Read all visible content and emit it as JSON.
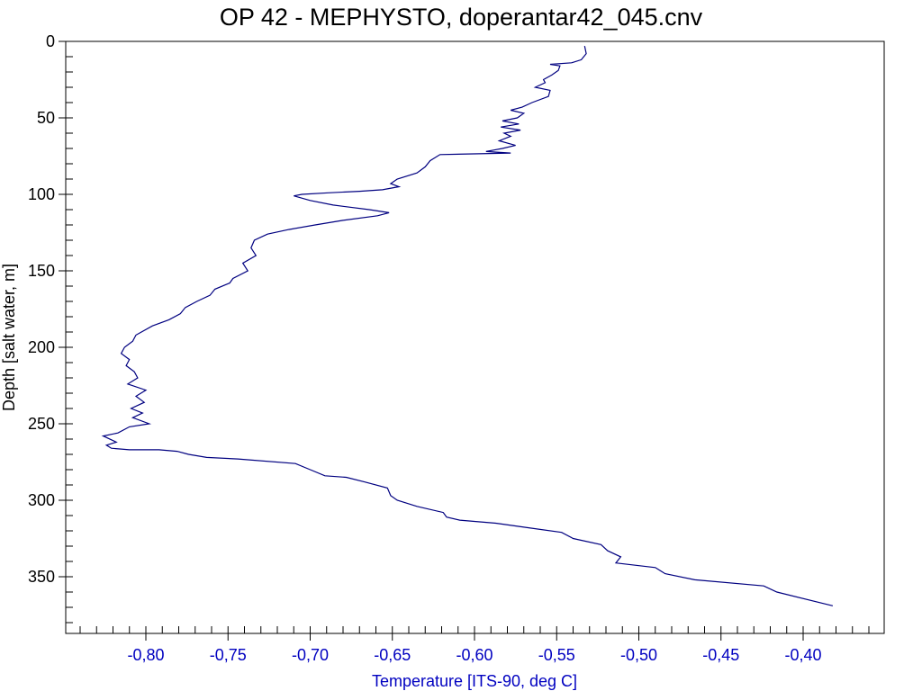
{
  "chart_data": {
    "type": "line",
    "title": "OP 42 - MEPHYSTO, doperantar42_045.cnv",
    "xlabel": "Temperature [ITS-90, deg C]",
    "ylabel": "Depth [salt water, m]",
    "xlim": [
      -0.85,
      -0.36
    ],
    "ylim": [
      0,
      385
    ],
    "y_inverted": true,
    "x_ticks": [
      {
        "value": -0.8,
        "label": "-0,80"
      },
      {
        "value": -0.75,
        "label": "-0,75"
      },
      {
        "value": -0.7,
        "label": "-0,70"
      },
      {
        "value": -0.65,
        "label": "-0,65"
      },
      {
        "value": -0.6,
        "label": "-0,60"
      },
      {
        "value": -0.55,
        "label": "-0,55"
      },
      {
        "value": -0.5,
        "label": "-0,50"
      },
      {
        "value": -0.45,
        "label": "-0,45"
      },
      {
        "value": -0.4,
        "label": "-0,40"
      }
    ],
    "y_ticks": [
      {
        "value": 0,
        "label": "0"
      },
      {
        "value": 50,
        "label": "50"
      },
      {
        "value": 100,
        "label": "100"
      },
      {
        "value": 150,
        "label": "150"
      },
      {
        "value": 200,
        "label": "200"
      },
      {
        "value": 250,
        "label": "250"
      },
      {
        "value": 300,
        "label": "300"
      },
      {
        "value": 350,
        "label": "350"
      }
    ],
    "grid": false,
    "line_color": "#000080",
    "axis_label_color": "#0000c0",
    "series": [
      {
        "x": [
          -0.533,
          -0.532,
          -0.535,
          -0.541,
          -0.554,
          -0.548,
          -0.549,
          -0.553,
          -0.558,
          -0.557,
          -0.563,
          -0.554,
          -0.555,
          -0.565,
          -0.571,
          -0.578,
          -0.57,
          -0.574,
          -0.583,
          -0.573,
          -0.584,
          -0.572,
          -0.582,
          -0.578,
          -0.585,
          -0.575,
          -0.583,
          -0.588,
          -0.593,
          -0.578,
          -0.621,
          -0.627,
          -0.63,
          -0.635,
          -0.647,
          -0.651,
          -0.646,
          -0.656,
          -0.67,
          -0.689,
          -0.705,
          -0.71,
          -0.7,
          -0.686,
          -0.664,
          -0.652,
          -0.659,
          -0.68,
          -0.697,
          -0.713,
          -0.726,
          -0.734,
          -0.736,
          -0.733,
          -0.741,
          -0.738,
          -0.747,
          -0.749,
          -0.758,
          -0.761,
          -0.769,
          -0.776,
          -0.779,
          -0.786,
          -0.796,
          -0.806,
          -0.808,
          -0.813,
          -0.815,
          -0.81,
          -0.812,
          -0.807,
          -0.805,
          -0.811,
          -0.8,
          -0.806,
          -0.801,
          -0.809,
          -0.802,
          -0.808,
          -0.798,
          -0.81,
          -0.817,
          -0.826,
          -0.818,
          -0.824,
          -0.821,
          -0.81,
          -0.792,
          -0.781,
          -0.774,
          -0.763,
          -0.744,
          -0.709,
          -0.7,
          -0.691,
          -0.678,
          -0.667,
          -0.653,
          -0.651,
          -0.647,
          -0.635,
          -0.619,
          -0.617,
          -0.609,
          -0.587,
          -0.567,
          -0.547,
          -0.54,
          -0.523,
          -0.519,
          -0.511,
          -0.514,
          -0.49,
          -0.484,
          -0.466,
          -0.424,
          -0.416,
          -0.382
        ],
        "y": [
          3,
          8,
          12,
          14,
          15,
          16,
          19,
          22,
          25,
          27,
          30,
          32,
          36,
          40,
          43,
          45,
          47,
          50,
          52,
          54,
          56,
          58,
          60,
          62,
          65,
          68,
          70,
          71,
          72,
          73,
          74,
          78,
          82,
          86,
          90,
          93,
          95,
          97,
          98,
          99,
          100,
          101,
          104,
          107,
          110,
          112,
          114,
          117,
          120,
          123,
          126,
          130,
          135,
          140,
          145,
          150,
          155,
          158,
          162,
          166,
          170,
          174,
          178,
          182,
          186,
          192,
          196,
          200,
          204,
          208,
          212,
          216,
          220,
          224,
          228,
          232,
          236,
          240,
          243,
          246,
          250,
          252,
          256,
          258,
          262,
          264,
          266,
          267,
          267,
          268,
          270,
          272,
          273,
          276,
          280,
          284,
          285,
          288,
          292,
          297,
          300,
          304,
          308,
          311,
          313,
          315,
          318,
          321,
          325,
          329,
          333,
          337,
          341,
          344,
          348,
          352,
          356,
          360,
          369
        ]
      }
    ]
  }
}
